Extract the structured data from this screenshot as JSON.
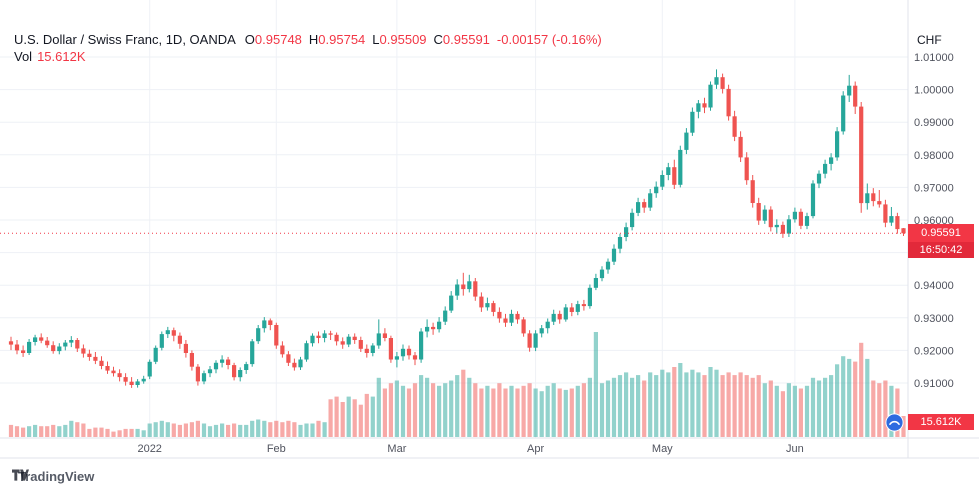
{
  "legend": {
    "title": "U.S. Dollar / Swiss Franc, 1D, OANDA",
    "ohlc": [
      {
        "label": "O",
        "value": "0.95748"
      },
      {
        "label": "H",
        "value": "0.95754"
      },
      {
        "label": "L",
        "value": "0.95509"
      },
      {
        "label": "C",
        "value": "0.95591"
      }
    ],
    "change": "-0.00157 (-0.16%)",
    "vol_label": "Vol",
    "vol_value": "15.612K"
  },
  "axes": {
    "currency_label": "CHF",
    "y_ticks": [
      "1.01000",
      "1.00000",
      "0.99000",
      "0.98000",
      "0.97000",
      "0.96000",
      "0.95000",
      "0.94000",
      "0.93000",
      "0.92000",
      "0.91000"
    ],
    "x_labels": [
      {
        "index": 23,
        "label": "2022"
      },
      {
        "index": 44,
        "label": "Feb"
      },
      {
        "index": 64,
        "label": "Mar"
      },
      {
        "index": 87,
        "label": "Apr"
      },
      {
        "index": 108,
        "label": "May"
      },
      {
        "index": 130,
        "label": "Jun"
      }
    ]
  },
  "badges": {
    "price": "0.95591",
    "countdown": "16:50:42",
    "volume": "15.612K"
  },
  "footer": {
    "brand": "TradingView"
  },
  "colors": {
    "up": "#26a69a",
    "down": "#ef5350",
    "accent_red": "#f23645",
    "volume_up": "rgba(38,166,154,0.5)",
    "volume_down": "rgba(239,83,80,0.5)",
    "grid": "#eef1f6",
    "border": "#e0e3eb",
    "axis_text": "#50535e"
  },
  "chart_data": {
    "type": "candlestick",
    "symbol": "U.S. Dollar / Swiss Franc",
    "interval": "1D",
    "exchange": "OANDA",
    "quote_currency": "CHF",
    "price_axis_range": [
      0.905,
      1.012
    ],
    "last_price": 0.95591,
    "legend_position": "top-left",
    "grid": true,
    "columns": [
      "date",
      "open",
      "high",
      "low",
      "close",
      "volume_k"
    ],
    "candles": [
      [
        "12-01",
        0.9228,
        0.9242,
        0.9201,
        0.9218,
        9
      ],
      [
        "12-02",
        0.9218,
        0.9232,
        0.9188,
        0.92,
        8
      ],
      [
        "12-03",
        0.92,
        0.9215,
        0.918,
        0.9192,
        7
      ],
      [
        "12-06",
        0.9192,
        0.9235,
        0.9186,
        0.9226,
        8
      ],
      [
        "12-07",
        0.9226,
        0.9248,
        0.9215,
        0.924,
        9
      ],
      [
        "12-08",
        0.924,
        0.9252,
        0.9222,
        0.923,
        8
      ],
      [
        "12-09",
        0.923,
        0.9241,
        0.9208,
        0.9216,
        8
      ],
      [
        "12-10",
        0.9216,
        0.9228,
        0.919,
        0.9198,
        9
      ],
      [
        "12-13",
        0.9198,
        0.9222,
        0.9188,
        0.9212,
        8
      ],
      [
        "12-14",
        0.9212,
        0.9232,
        0.92,
        0.9224,
        9
      ],
      [
        "12-15",
        0.9224,
        0.9244,
        0.921,
        0.9232,
        12
      ],
      [
        "12-16",
        0.9232,
        0.9238,
        0.9195,
        0.9206,
        11
      ],
      [
        "12-17",
        0.9206,
        0.9218,
        0.9178,
        0.919,
        10
      ],
      [
        "12-20",
        0.919,
        0.9202,
        0.9168,
        0.918,
        6
      ],
      [
        "12-21",
        0.918,
        0.9195,
        0.9158,
        0.9168,
        7
      ],
      [
        "12-22",
        0.9168,
        0.9182,
        0.9142,
        0.9152,
        7
      ],
      [
        "12-23",
        0.9152,
        0.9166,
        0.9128,
        0.9138,
        6
      ],
      [
        "12-24",
        0.9138,
        0.915,
        0.912,
        0.913,
        4
      ],
      [
        "12-27",
        0.913,
        0.9142,
        0.9105,
        0.9118,
        5
      ],
      [
        "12-28",
        0.9118,
        0.913,
        0.9092,
        0.9104,
        6
      ],
      [
        "12-29",
        0.9104,
        0.9118,
        0.9085,
        0.9094,
        6
      ],
      [
        "12-30",
        0.9094,
        0.9112,
        0.9086,
        0.9105,
        6
      ],
      [
        "12-31",
        0.9105,
        0.9122,
        0.9098,
        0.9113,
        5
      ],
      [
        "01-03",
        0.912,
        0.9172,
        0.9112,
        0.9165,
        10
      ],
      [
        "01-04",
        0.9165,
        0.9215,
        0.9158,
        0.9208,
        11
      ],
      [
        "01-05",
        0.9208,
        0.9258,
        0.92,
        0.925,
        12
      ],
      [
        "01-06",
        0.925,
        0.9272,
        0.9238,
        0.9262,
        11
      ],
      [
        "01-07",
        0.9262,
        0.927,
        0.9228,
        0.9245,
        10
      ],
      [
        "01-10",
        0.9245,
        0.9255,
        0.9205,
        0.922,
        9
      ],
      [
        "01-11",
        0.922,
        0.9232,
        0.9178,
        0.9192,
        10
      ],
      [
        "01-12",
        0.9192,
        0.92,
        0.9138,
        0.915,
        11
      ],
      [
        "01-13",
        0.915,
        0.9158,
        0.9092,
        0.9105,
        12
      ],
      [
        "01-14",
        0.9105,
        0.9138,
        0.9096,
        0.913,
        10
      ],
      [
        "01-17",
        0.913,
        0.9152,
        0.9118,
        0.9142,
        8
      ],
      [
        "01-18",
        0.9142,
        0.917,
        0.913,
        0.9162,
        9
      ],
      [
        "01-19",
        0.9162,
        0.9185,
        0.9148,
        0.9172,
        10
      ],
      [
        "01-20",
        0.9172,
        0.918,
        0.9142,
        0.9155,
        9
      ],
      [
        "01-21",
        0.9155,
        0.9162,
        0.9108,
        0.9118,
        10
      ],
      [
        "01-24",
        0.9118,
        0.9148,
        0.9105,
        0.914,
        9
      ],
      [
        "01-25",
        0.914,
        0.9165,
        0.9128,
        0.9158,
        9
      ],
      [
        "01-26",
        0.9158,
        0.9235,
        0.915,
        0.9228,
        12
      ],
      [
        "01-27",
        0.9228,
        0.9278,
        0.922,
        0.9268,
        13
      ],
      [
        "01-28",
        0.9268,
        0.9302,
        0.9255,
        0.9292,
        12
      ],
      [
        "01-31",
        0.9292,
        0.9298,
        0.9262,
        0.9278,
        11
      ],
      [
        "02-01",
        0.9278,
        0.9285,
        0.9205,
        0.9215,
        12
      ],
      [
        "02-02",
        0.9215,
        0.9228,
        0.9178,
        0.9188,
        11
      ],
      [
        "02-03",
        0.9188,
        0.9198,
        0.9152,
        0.9162,
        12
      ],
      [
        "02-04",
        0.9162,
        0.9175,
        0.9138,
        0.9148,
        11
      ],
      [
        "02-07",
        0.9148,
        0.918,
        0.914,
        0.9172,
        9
      ],
      [
        "02-08",
        0.9172,
        0.923,
        0.9165,
        0.9222,
        10
      ],
      [
        "02-09",
        0.9222,
        0.9252,
        0.9212,
        0.9245,
        10
      ],
      [
        "02-10",
        0.9245,
        0.9258,
        0.9222,
        0.9238,
        12
      ],
      [
        "02-11",
        0.9238,
        0.9262,
        0.9225,
        0.9252,
        11
      ],
      [
        "02-14",
        0.9252,
        0.926,
        0.9232,
        0.9248,
        28
      ],
      [
        "02-15",
        0.9248,
        0.9255,
        0.9215,
        0.9228,
        30
      ],
      [
        "02-16",
        0.9228,
        0.924,
        0.9205,
        0.9218,
        26
      ],
      [
        "02-17",
        0.9218,
        0.925,
        0.921,
        0.9242,
        30
      ],
      [
        "02-18",
        0.9242,
        0.9252,
        0.922,
        0.9232,
        28
      ],
      [
        "02-21",
        0.9232,
        0.9242,
        0.9195,
        0.9205,
        24
      ],
      [
        "02-22",
        0.9205,
        0.9218,
        0.9178,
        0.9192,
        32
      ],
      [
        "02-23",
        0.9192,
        0.9222,
        0.9182,
        0.9215,
        30
      ],
      [
        "02-24",
        0.9215,
        0.9295,
        0.9205,
        0.9252,
        44
      ],
      [
        "02-25",
        0.9252,
        0.9268,
        0.9228,
        0.9238,
        36
      ],
      [
        "02-28",
        0.9238,
        0.9245,
        0.9162,
        0.9172,
        40
      ],
      [
        "03-01",
        0.9172,
        0.9195,
        0.9148,
        0.9182,
        42
      ],
      [
        "03-02",
        0.9182,
        0.9218,
        0.9168,
        0.9205,
        38
      ],
      [
        "03-03",
        0.9205,
        0.9215,
        0.9172,
        0.9185,
        36
      ],
      [
        "03-04",
        0.9185,
        0.9195,
        0.9155,
        0.9172,
        40
      ],
      [
        "03-07",
        0.9172,
        0.9268,
        0.9162,
        0.9258,
        46
      ],
      [
        "03-08",
        0.9258,
        0.9295,
        0.924,
        0.9272,
        44
      ],
      [
        "03-09",
        0.9272,
        0.9285,
        0.9248,
        0.9265,
        40
      ],
      [
        "03-10",
        0.9265,
        0.9302,
        0.9255,
        0.9288,
        38
      ],
      [
        "03-11",
        0.9288,
        0.9335,
        0.9278,
        0.9322,
        40
      ],
      [
        "03-14",
        0.9322,
        0.9382,
        0.9315,
        0.9368,
        42
      ],
      [
        "03-15",
        0.9368,
        0.9418,
        0.9355,
        0.9402,
        46
      ],
      [
        "03-16",
        0.9402,
        0.9438,
        0.9368,
        0.9388,
        50
      ],
      [
        "03-17",
        0.9388,
        0.9432,
        0.9378,
        0.9412,
        44
      ],
      [
        "03-18",
        0.9412,
        0.9422,
        0.9352,
        0.9365,
        40
      ],
      [
        "03-21",
        0.9365,
        0.9378,
        0.9318,
        0.9332,
        36
      ],
      [
        "03-22",
        0.9332,
        0.9362,
        0.9322,
        0.9345,
        38
      ],
      [
        "03-23",
        0.9345,
        0.9352,
        0.9305,
        0.9318,
        36
      ],
      [
        "03-24",
        0.9318,
        0.9332,
        0.9285,
        0.9298,
        40
      ],
      [
        "03-25",
        0.9298,
        0.9312,
        0.9272,
        0.9285,
        36
      ],
      [
        "03-28",
        0.9285,
        0.9325,
        0.9275,
        0.9312,
        38
      ],
      [
        "03-29",
        0.9312,
        0.932,
        0.9282,
        0.9295,
        36
      ],
      [
        "03-30",
        0.9295,
        0.9302,
        0.9242,
        0.9252,
        38
      ],
      [
        "03-31",
        0.9252,
        0.9262,
        0.9196,
        0.9208,
        40
      ],
      [
        "04-01",
        0.9208,
        0.9262,
        0.9198,
        0.9252,
        36
      ],
      [
        "04-04",
        0.9252,
        0.9278,
        0.924,
        0.9268,
        34
      ],
      [
        "04-05",
        0.9268,
        0.9298,
        0.9252,
        0.9288,
        38
      ],
      [
        "04-06",
        0.9288,
        0.9325,
        0.9278,
        0.9312,
        40
      ],
      [
        "04-07",
        0.9312,
        0.9322,
        0.9282,
        0.9295,
        36
      ],
      [
        "04-08",
        0.9295,
        0.9342,
        0.9288,
        0.9332,
        35
      ],
      [
        "04-11",
        0.9332,
        0.9345,
        0.9305,
        0.9318,
        36
      ],
      [
        "04-12",
        0.9318,
        0.9352,
        0.9308,
        0.9342,
        38
      ],
      [
        "04-13",
        0.9342,
        0.9355,
        0.9322,
        0.9336,
        40
      ],
      [
        "04-14",
        0.9336,
        0.9402,
        0.9328,
        0.9392,
        44
      ],
      [
        "04-15",
        0.9392,
        0.9435,
        0.9385,
        0.9422,
        78
      ],
      [
        "04-18",
        0.9422,
        0.9458,
        0.9412,
        0.9448,
        40
      ],
      [
        "04-19",
        0.9448,
        0.9482,
        0.9435,
        0.9472,
        42
      ],
      [
        "04-20",
        0.9472,
        0.9525,
        0.9462,
        0.9512,
        44
      ],
      [
        "04-21",
        0.9512,
        0.9558,
        0.9498,
        0.9548,
        46
      ],
      [
        "04-22",
        0.9548,
        0.9592,
        0.9535,
        0.9578,
        48
      ],
      [
        "04-25",
        0.9578,
        0.9635,
        0.9568,
        0.9622,
        44
      ],
      [
        "04-26",
        0.9622,
        0.9668,
        0.9612,
        0.9655,
        46
      ],
      [
        "04-27",
        0.9655,
        0.9665,
        0.9622,
        0.9638,
        42
      ],
      [
        "04-28",
        0.9638,
        0.9695,
        0.9628,
        0.9682,
        48
      ],
      [
        "04-29",
        0.9682,
        0.9718,
        0.9668,
        0.9702,
        46
      ],
      [
        "05-02",
        0.9702,
        0.9752,
        0.9692,
        0.9738,
        50
      ],
      [
        "05-03",
        0.9738,
        0.9775,
        0.9722,
        0.9762,
        48
      ],
      [
        "05-04",
        0.9762,
        0.9785,
        0.9695,
        0.9708,
        52
      ],
      [
        "05-05",
        0.9708,
        0.9828,
        0.97,
        0.9815,
        55
      ],
      [
        "05-06",
        0.9815,
        0.9882,
        0.9802,
        0.9868,
        48
      ],
      [
        "05-09",
        0.9868,
        0.9945,
        0.9858,
        0.9932,
        50
      ],
      [
        "05-10",
        0.9932,
        0.9968,
        0.9912,
        0.9958,
        48
      ],
      [
        "05-11",
        0.9958,
        0.9975,
        0.9928,
        0.9945,
        46
      ],
      [
        "05-12",
        0.9945,
        1.0025,
        0.9935,
        1.0015,
        52
      ],
      [
        "05-13",
        1.0015,
        1.0062,
        1.0002,
        1.0038,
        50
      ],
      [
        "05-16",
        1.0038,
        1.0049,
        0.9988,
        1.0002,
        46
      ],
      [
        "05-17",
        1.0002,
        1.0015,
        0.9905,
        0.9918,
        48
      ],
      [
        "05-18",
        0.9918,
        0.9935,
        0.9842,
        0.9855,
        46
      ],
      [
        "05-19",
        0.9855,
        0.9872,
        0.9778,
        0.9792,
        48
      ],
      [
        "05-20",
        0.9792,
        0.9808,
        0.9708,
        0.9722,
        46
      ],
      [
        "05-23",
        0.9722,
        0.9738,
        0.9638,
        0.9652,
        44
      ],
      [
        "05-24",
        0.9652,
        0.9668,
        0.9585,
        0.9598,
        46
      ],
      [
        "05-25",
        0.9598,
        0.9645,
        0.9588,
        0.9632,
        40
      ],
      [
        "05-26",
        0.9632,
        0.9642,
        0.9565,
        0.9578,
        42
      ],
      [
        "05-27",
        0.9578,
        0.9602,
        0.9558,
        0.9585,
        38
      ],
      [
        "05-30",
        0.9585,
        0.9595,
        0.9545,
        0.9558,
        34
      ],
      [
        "05-31",
        0.9558,
        0.9615,
        0.9548,
        0.9602,
        40
      ],
      [
        "06-01",
        0.9602,
        0.9638,
        0.9592,
        0.9625,
        38
      ],
      [
        "06-02",
        0.9625,
        0.9635,
        0.9572,
        0.9582,
        36
      ],
      [
        "06-03",
        0.9582,
        0.9622,
        0.9572,
        0.9612,
        38
      ],
      [
        "06-06",
        0.9612,
        0.9722,
        0.9605,
        0.9712,
        44
      ],
      [
        "06-07",
        0.9712,
        0.9752,
        0.9698,
        0.9742,
        42
      ],
      [
        "06-08",
        0.9742,
        0.9785,
        0.9728,
        0.9772,
        44
      ],
      [
        "06-09",
        0.9772,
        0.9805,
        0.9752,
        0.9792,
        46
      ],
      [
        "06-10",
        0.9792,
        0.9885,
        0.9782,
        0.9872,
        54
      ],
      [
        "06-13",
        0.9872,
        0.9995,
        0.9862,
        0.9982,
        60
      ],
      [
        "06-14",
        0.9982,
        1.0045,
        0.9962,
        1.0012,
        58
      ],
      [
        "06-15",
        1.0012,
        1.0025,
        0.9925,
        0.9948,
        56
      ],
      [
        "06-16",
        0.9948,
        0.9962,
        0.9622,
        0.9652,
        70
      ],
      [
        "06-17",
        0.9652,
        0.9712,
        0.9632,
        0.9682,
        58
      ],
      [
        "06-20",
        0.9682,
        0.9698,
        0.9642,
        0.9658,
        42
      ],
      [
        "06-21",
        0.9658,
        0.9692,
        0.9638,
        0.9648,
        40
      ],
      [
        "06-22",
        0.9648,
        0.9662,
        0.9578,
        0.9592,
        42
      ],
      [
        "06-23",
        0.9592,
        0.964,
        0.9582,
        0.9612,
        38
      ],
      [
        "06-24",
        0.9612,
        0.9622,
        0.9558,
        0.9572,
        36
      ],
      [
        "06-27",
        0.95748,
        0.95754,
        0.95509,
        0.95591,
        15.612
      ]
    ]
  }
}
